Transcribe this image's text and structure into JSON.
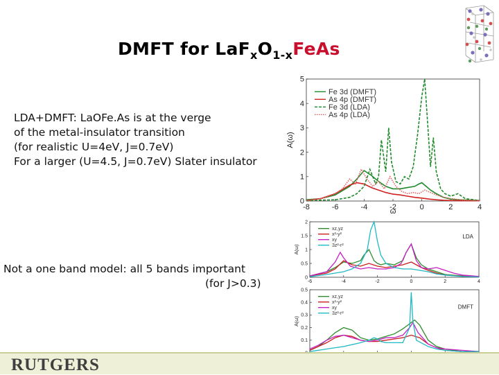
{
  "slide": {
    "title_parts": [
      "DMFT for La",
      "F",
      "x",
      "O",
      "1-x",
      "Fe",
      "As"
    ],
    "body_lines": [
      "LDA+DMFT: LaOFe.As is at the verge",
      "of the metal-insulator transition",
      "(for realistic U=4eV, J=0.7eV)",
      "For a larger (U=4.5, J=0.7eV) Slater insulator"
    ],
    "note_lines": [
      "Not a one band model: all 5 bands important",
      "(for J>0.3)"
    ],
    "logo": "RUTGERS",
    "colors": {
      "title_accent": "#c8102e",
      "footer": "#eef1d8"
    }
  },
  "chart_data": [
    {
      "type": "line",
      "xlim": [
        -8,
        4
      ],
      "ylim": [
        0,
        5
      ],
      "xticks": [
        -8,
        -6,
        -4,
        -2,
        0,
        2,
        4
      ],
      "yticks": [
        0,
        1,
        2,
        3,
        4,
        5
      ],
      "xlabel": "ω",
      "ylabel": "A(ω)",
      "legend": "top-left",
      "series": [
        {
          "name": "Fe 3d (DMFT)",
          "color": "#1f8a2a",
          "dash": "solid",
          "x": [
            -8,
            -7,
            -6,
            -5,
            -4.5,
            -4,
            -3.5,
            -3,
            -2.5,
            -2,
            -1.5,
            -1,
            -0.5,
            -0.2,
            0,
            0.3,
            0.6,
            1,
            1.5,
            2,
            2.5,
            3,
            3.5,
            4
          ],
          "y": [
            0.05,
            0.1,
            0.25,
            0.6,
            0.9,
            1.25,
            1.05,
            0.8,
            0.6,
            0.5,
            0.5,
            0.55,
            0.6,
            0.7,
            0.75,
            0.6,
            0.45,
            0.3,
            0.15,
            0.08,
            0.05,
            0.04,
            0.03,
            0.02
          ]
        },
        {
          "name": "As 4p (DMFT)",
          "color": "#d12020",
          "dash": "solid",
          "x": [
            -8,
            -7,
            -6,
            -5,
            -4.5,
            -4,
            -3.5,
            -3,
            -2.5,
            -2,
            -1.5,
            -1,
            -0.5,
            0,
            0.5,
            1,
            1.5,
            2,
            3,
            4
          ],
          "y": [
            0.02,
            0.1,
            0.3,
            0.65,
            0.75,
            0.7,
            0.55,
            0.45,
            0.35,
            0.28,
            0.25,
            0.2,
            0.15,
            0.12,
            0.08,
            0.05,
            0.03,
            0.02,
            0.01,
            0.01
          ]
        },
        {
          "name": "Fe 3d (LDA)",
          "color": "#1f8a2a",
          "dash": "dashed",
          "x": [
            -8,
            -6,
            -5,
            -4.5,
            -4,
            -3.6,
            -3.2,
            -3,
            -2.8,
            -2.5,
            -2.3,
            -2.1,
            -1.8,
            -1.5,
            -1.2,
            -0.9,
            -0.6,
            -0.3,
            0,
            0.2,
            0.4,
            0.6,
            0.8,
            1,
            1.3,
            1.6,
            2,
            2.5,
            3,
            4
          ],
          "y": [
            0.02,
            0.05,
            0.15,
            0.3,
            0.6,
            1.3,
            0.7,
            1.0,
            2.5,
            1.2,
            3.0,
            1.6,
            0.8,
            0.7,
            1.0,
            0.9,
            1.4,
            2.7,
            4.3,
            5.0,
            3.2,
            1.4,
            2.6,
            1.2,
            0.5,
            0.3,
            0.2,
            0.3,
            0.1,
            0.02
          ]
        },
        {
          "name": "As 4p (LDA)",
          "color": "#e06060",
          "dash": "dotted",
          "x": [
            -8,
            -7,
            -6,
            -5.5,
            -5,
            -4.6,
            -4.2,
            -3.8,
            -3.4,
            -3,
            -2.6,
            -2.2,
            -1.8,
            -1.4,
            -1,
            -0.6,
            -0.2,
            0.2,
            0.6,
            1,
            1.5,
            2,
            3,
            4
          ],
          "y": [
            0.02,
            0.1,
            0.3,
            0.5,
            0.9,
            0.7,
            1.3,
            0.9,
            0.6,
            0.8,
            0.5,
            1.0,
            0.6,
            0.4,
            0.3,
            0.35,
            0.3,
            0.45,
            0.35,
            0.25,
            0.15,
            0.1,
            0.03,
            0.01
          ]
        }
      ]
    },
    {
      "type": "line",
      "xlim": [
        -6,
        4
      ],
      "ylim": [
        0,
        2
      ],
      "xticks": [
        -6,
        -4,
        -2,
        0,
        2,
        4
      ],
      "yticks": [
        0,
        0.5,
        1,
        1.5,
        2
      ],
      "ylabel": "A(ω)",
      "annotation": "LDA",
      "legend": "top-left",
      "series": [
        {
          "name": "xz,yz",
          "color": "#2e8b2e",
          "x": [
            -6,
            -5,
            -4.5,
            -4,
            -3.5,
            -3,
            -2.8,
            -2.5,
            -2.2,
            -2,
            -1.8,
            -1.5,
            -1,
            -0.5,
            -0.3,
            0,
            0.3,
            0.6,
            1,
            1.5,
            2,
            3,
            4
          ],
          "y": [
            0.05,
            0.2,
            0.35,
            0.55,
            0.5,
            0.6,
            0.8,
            1.0,
            0.6,
            0.5,
            0.45,
            0.5,
            0.45,
            0.6,
            0.9,
            1.2,
            0.7,
            0.45,
            0.3,
            0.2,
            0.1,
            0.05,
            0.02
          ]
        },
        {
          "name": "x²-y²",
          "color": "#c81e1e",
          "x": [
            -6,
            -5,
            -4.5,
            -4,
            -3.5,
            -3,
            -2.5,
            -2,
            -1.5,
            -1,
            -0.5,
            0,
            0.3,
            0.6,
            1,
            1.5,
            2,
            3,
            4
          ],
          "y": [
            0.05,
            0.15,
            0.3,
            0.6,
            0.45,
            0.4,
            0.5,
            0.4,
            0.35,
            0.4,
            0.45,
            0.55,
            0.45,
            0.35,
            0.25,
            0.15,
            0.08,
            0.04,
            0.02
          ]
        },
        {
          "name": "xy",
          "color": "#c41ec4",
          "x": [
            -6,
            -5,
            -4.5,
            -4.2,
            -4,
            -3.6,
            -3,
            -2.5,
            -2,
            -1.5,
            -1,
            -0.6,
            -0.3,
            0,
            0.3,
            0.6,
            1,
            1.5,
            2,
            2.5,
            3,
            4
          ],
          "y": [
            0.05,
            0.2,
            0.55,
            0.9,
            0.7,
            0.4,
            0.3,
            0.35,
            0.3,
            0.3,
            0.35,
            0.5,
            0.9,
            1.2,
            0.6,
            0.35,
            0.3,
            0.35,
            0.25,
            0.15,
            0.08,
            0.03
          ]
        },
        {
          "name": "3z²-r²",
          "color": "#20b8c4",
          "x": [
            -6,
            -5,
            -4,
            -3.5,
            -3,
            -2.6,
            -2.4,
            -2.2,
            -2,
            -1.8,
            -1.5,
            -1,
            -0.5,
            0,
            0.5,
            1,
            1.5,
            2,
            3,
            4
          ],
          "y": [
            0.02,
            0.1,
            0.2,
            0.3,
            0.5,
            1.0,
            1.7,
            2.0,
            1.3,
            0.8,
            0.5,
            0.35,
            0.3,
            0.3,
            0.25,
            0.2,
            0.12,
            0.08,
            0.03,
            0.01
          ]
        }
      ]
    },
    {
      "type": "line",
      "xlim": [
        -6,
        4
      ],
      "ylim": [
        0,
        0.5
      ],
      "xticks": [
        -6,
        -4,
        -2,
        0,
        2,
        4
      ],
      "yticks": [
        0,
        0.1,
        0.2,
        0.3,
        0.4,
        0.5
      ],
      "xlabel": "ω[eV]",
      "ylabel": "A(ω)",
      "annotation": "DMFT",
      "legend": "top-left",
      "series": [
        {
          "name": "xz,yz",
          "color": "#2e8b2e",
          "x": [
            -6,
            -5.5,
            -5,
            -4.5,
            -4,
            -3.5,
            -3,
            -2.5,
            -2,
            -1.5,
            -1,
            -0.5,
            -0.2,
            0,
            0.2,
            0.5,
            1,
            1.5,
            2,
            3,
            4
          ],
          "y": [
            0.02,
            0.05,
            0.1,
            0.16,
            0.2,
            0.18,
            0.12,
            0.1,
            0.11,
            0.13,
            0.15,
            0.19,
            0.22,
            0.24,
            0.26,
            0.22,
            0.1,
            0.05,
            0.03,
            0.01,
            0.01
          ]
        },
        {
          "name": "x²-y²",
          "color": "#c81e1e",
          "x": [
            -6,
            -5.5,
            -5,
            -4.5,
            -4,
            -3.5,
            -3,
            -2.5,
            -2,
            -1.5,
            -1,
            -0.5,
            0,
            0.5,
            1,
            1.5,
            2,
            3,
            4
          ],
          "y": [
            0.02,
            0.05,
            0.08,
            0.12,
            0.14,
            0.13,
            0.1,
            0.09,
            0.09,
            0.1,
            0.11,
            0.12,
            0.14,
            0.12,
            0.07,
            0.04,
            0.02,
            0.01,
            0.01
          ]
        },
        {
          "name": "xy",
          "color": "#c41ec4",
          "x": [
            -6,
            -5.5,
            -5,
            -4.5,
            -4,
            -3.5,
            -3,
            -2.5,
            -2,
            -1.5,
            -1,
            -0.5,
            -0.1,
            0.1,
            0.4,
            1,
            1.5,
            2,
            3,
            4
          ],
          "y": [
            0.03,
            0.06,
            0.1,
            0.13,
            0.14,
            0.12,
            0.1,
            0.09,
            0.1,
            0.12,
            0.12,
            0.14,
            0.2,
            0.24,
            0.16,
            0.07,
            0.04,
            0.03,
            0.02,
            0.01
          ]
        },
        {
          "name": "3z²-r²",
          "color": "#20b8c4",
          "x": [
            -6,
            -5,
            -4,
            -3,
            -2.5,
            -2.2,
            -2,
            -1.8,
            -1.5,
            -1,
            -0.5,
            -0.1,
            0,
            0.1,
            0.3,
            1,
            1.5,
            2,
            3,
            4
          ],
          "y": [
            0.01,
            0.03,
            0.05,
            0.08,
            0.1,
            0.12,
            0.11,
            0.09,
            0.08,
            0.08,
            0.08,
            0.2,
            0.48,
            0.25,
            0.1,
            0.05,
            0.03,
            0.02,
            0.01,
            0.01
          ]
        }
      ]
    }
  ]
}
